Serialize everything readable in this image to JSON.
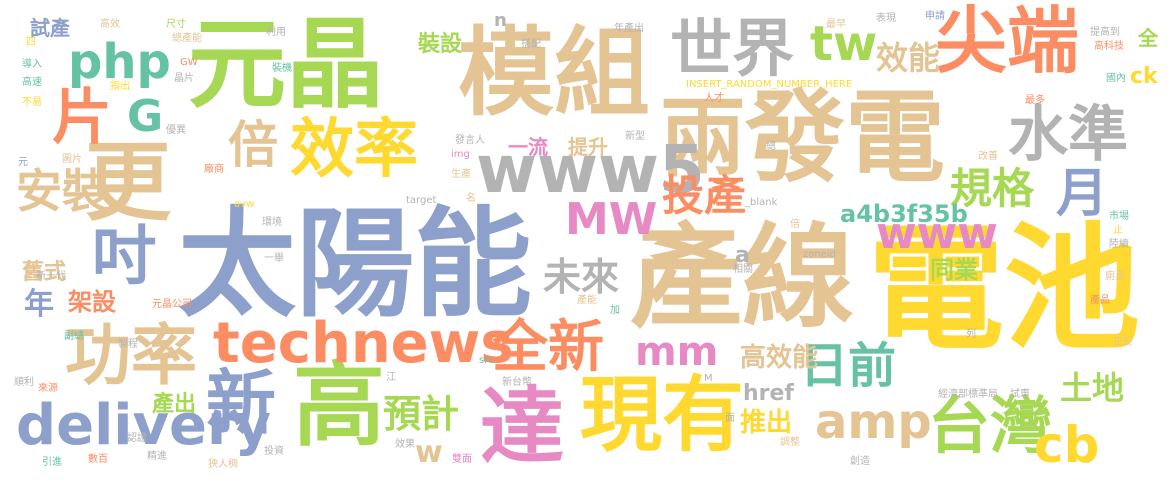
{
  "palette": {
    "green": "#a6d854",
    "tan": "#e5c494",
    "blue": "#8da0cb",
    "yellow": "#ffd92f",
    "orange": "#fc8d62",
    "teal": "#66c2a5",
    "pink": "#e78ac3",
    "gray": "#b3b3b3"
  },
  "words": [
    {
      "text": "太陽能",
      "color": "blue"
    },
    {
      "text": "產線",
      "color": "tan"
    },
    {
      "text": "電池",
      "color": "yellow"
    },
    {
      "text": "元晶",
      "color": "green"
    },
    {
      "text": "模組",
      "color": "tan"
    },
    {
      "text": "發電",
      "color": "tan"
    },
    {
      "text": "兩",
      "color": "tan"
    },
    {
      "text": "高",
      "color": "green"
    },
    {
      "text": "更",
      "color": "tan"
    },
    {
      "text": "尖端",
      "color": "orange"
    },
    {
      "text": "達",
      "color": "pink"
    },
    {
      "text": "現有",
      "color": "yellow"
    },
    {
      "text": "效率",
      "color": "yellow"
    },
    {
      "text": "世界",
      "color": "gray"
    },
    {
      "text": "片",
      "color": "orange"
    },
    {
      "text": "吋",
      "color": "blue"
    },
    {
      "text": "新",
      "color": "blue"
    },
    {
      "text": "功率",
      "color": "tan"
    },
    {
      "text": "www5",
      "color": "gray"
    },
    {
      "text": "technews",
      "color": "orange"
    },
    {
      "text": "delivery",
      "color": "blue"
    },
    {
      "text": "台灣",
      "color": "green"
    },
    {
      "text": "水準",
      "color": "gray"
    },
    {
      "text": "安裝",
      "color": "tan"
    },
    {
      "text": "php",
      "color": "teal"
    },
    {
      "text": "倍",
      "color": "tan"
    },
    {
      "text": "全新",
      "color": "orange"
    },
    {
      "text": "amp",
      "color": "tan"
    },
    {
      "text": "cb",
      "color": "yellow"
    },
    {
      "text": "日前",
      "color": "teal"
    },
    {
      "text": "tw",
      "color": "green"
    },
    {
      "text": "MW",
      "color": "pink"
    },
    {
      "text": "www",
      "color": "pink"
    },
    {
      "text": "投產",
      "color": "orange"
    },
    {
      "text": "規格",
      "color": "green"
    },
    {
      "text": "月",
      "color": "blue"
    },
    {
      "text": "未來",
      "color": "gray"
    },
    {
      "text": "G",
      "color": "teal"
    },
    {
      "text": "預計",
      "color": "green"
    },
    {
      "text": "mm",
      "color": "pink"
    },
    {
      "text": "效能",
      "color": "tan"
    },
    {
      "text": "年",
      "color": "blue"
    },
    {
      "text": "高效能",
      "color": "tan"
    },
    {
      "text": "土地",
      "color": "green"
    },
    {
      "text": "推出",
      "color": "yellow"
    },
    {
      "text": "a4b3f35b",
      "color": "teal"
    },
    {
      "text": "同業",
      "color": "green"
    },
    {
      "text": "架設",
      "color": "orange"
    },
    {
      "text": "舊式",
      "color": "tan"
    },
    {
      "text": "產出",
      "color": "green"
    },
    {
      "text": "裝設",
      "color": "green"
    },
    {
      "text": "試產",
      "color": "blue"
    },
    {
      "text": "提升",
      "color": "tan"
    },
    {
      "text": "一流",
      "color": "pink"
    },
    {
      "text": "href",
      "color": "gray"
    },
    {
      "text": "w",
      "color": "tan"
    },
    {
      "text": "n",
      "color": "gray"
    },
    {
      "text": "a",
      "color": "gray"
    },
    {
      "text": "全",
      "color": "green"
    },
    {
      "text": "ck",
      "color": "yellow"
    },
    {
      "text": "INSERT_RANDOM_NUMBER_HERE",
      "color": "yellow"
    },
    {
      "text": "高效",
      "color": "tan"
    },
    {
      "text": "尺寸",
      "color": "green"
    },
    {
      "text": "總產能",
      "color": "tan"
    },
    {
      "text": "利用",
      "color": "gray"
    },
    {
      "text": "導入",
      "color": "teal"
    },
    {
      "text": "高速",
      "color": "teal"
    },
    {
      "text": "不易",
      "color": "yellow"
    },
    {
      "text": "四",
      "color": "yellow"
    },
    {
      "text": "GW",
      "color": "orange"
    },
    {
      "text": "晶片",
      "color": "gray"
    },
    {
      "text": "指出",
      "color": "yellow"
    },
    {
      "text": "裝機",
      "color": "teal"
    },
    {
      "text": "優異",
      "color": "gray"
    },
    {
      "text": "搭配",
      "color": "gray"
    },
    {
      "text": "年產出",
      "color": "gray"
    },
    {
      "text": "最早",
      "color": "tan"
    },
    {
      "text": "表現",
      "color": "gray"
    },
    {
      "text": "申請",
      "color": "blue"
    },
    {
      "text": "提高到",
      "color": "gray"
    },
    {
      "text": "高科技",
      "color": "orange"
    },
    {
      "text": "國內",
      "color": "teal"
    },
    {
      "text": "最多",
      "color": "orange"
    },
    {
      "text": "人才",
      "color": "orange"
    },
    {
      "text": "總",
      "color": "gray"
    },
    {
      "text": "新型",
      "color": "gray"
    },
    {
      "text": "發言人",
      "color": "gray"
    },
    {
      "text": "img",
      "color": "pink"
    },
    {
      "text": "生產",
      "color": "tan"
    },
    {
      "text": "名",
      "color": "tan"
    },
    {
      "text": "target",
      "color": "gray"
    },
    {
      "text": "_blank",
      "color": "gray"
    },
    {
      "text": "倍",
      "color": "tan"
    },
    {
      "text": "zoneid",
      "color": "gray"
    },
    {
      "text": "相關",
      "color": "gray"
    },
    {
      "text": "改善",
      "color": "tan"
    },
    {
      "text": "市場",
      "color": "teal"
    },
    {
      "text": "止",
      "color": "yellow"
    },
    {
      "text": "陸續",
      "color": "gray"
    },
    {
      "text": "廁身",
      "color": "tan"
    },
    {
      "text": "產品",
      "color": "orange"
    },
    {
      "text": "正反",
      "color": "tan"
    },
    {
      "text": "經濟部標準局",
      "color": "gray"
    },
    {
      "text": "試車",
      "color": "gray"
    },
    {
      "text": "M",
      "color": "gray"
    },
    {
      "text": "面",
      "color": "gray"
    },
    {
      "text": "調整",
      "color": "tan"
    },
    {
      "text": "創造",
      "color": "gray"
    },
    {
      "text": "雙面",
      "color": "pink"
    },
    {
      "text": "效果",
      "color": "gray"
    },
    {
      "text": "新台幣",
      "color": "gray"
    },
    {
      "text": "src",
      "color": "teal"
    },
    {
      "text": "加",
      "color": "teal"
    },
    {
      "text": "產能",
      "color": "tan"
    },
    {
      "text": "投資",
      "color": "gray"
    },
    {
      "text": "狹人稠",
      "color": "tan"
    },
    {
      "text": "精進",
      "color": "gray"
    },
    {
      "text": "數百",
      "color": "orange"
    },
    {
      "text": "引進",
      "color": "teal"
    },
    {
      "text": "認證",
      "color": "gray"
    },
    {
      "text": "江",
      "color": "gray"
    },
    {
      "text": "來源",
      "color": "orange"
    },
    {
      "text": "順利",
      "color": "gray"
    },
    {
      "text": "副總",
      "color": "teal"
    },
    {
      "text": "製程",
      "color": "gray"
    },
    {
      "text": "元晶公司",
      "color": "orange"
    },
    {
      "text": "一舉",
      "color": "gray"
    },
    {
      "text": "環境",
      "color": "gray"
    },
    {
      "text": "新一代",
      "color": "gray"
    },
    {
      "text": "avw",
      "color": "yellow"
    },
    {
      "text": "圖片",
      "color": "tan"
    },
    {
      "text": "元",
      "color": "blue"
    },
    {
      "text": "廠商",
      "color": "orange"
    },
    {
      "text": "列",
      "color": "gray"
    }
  ]
}
